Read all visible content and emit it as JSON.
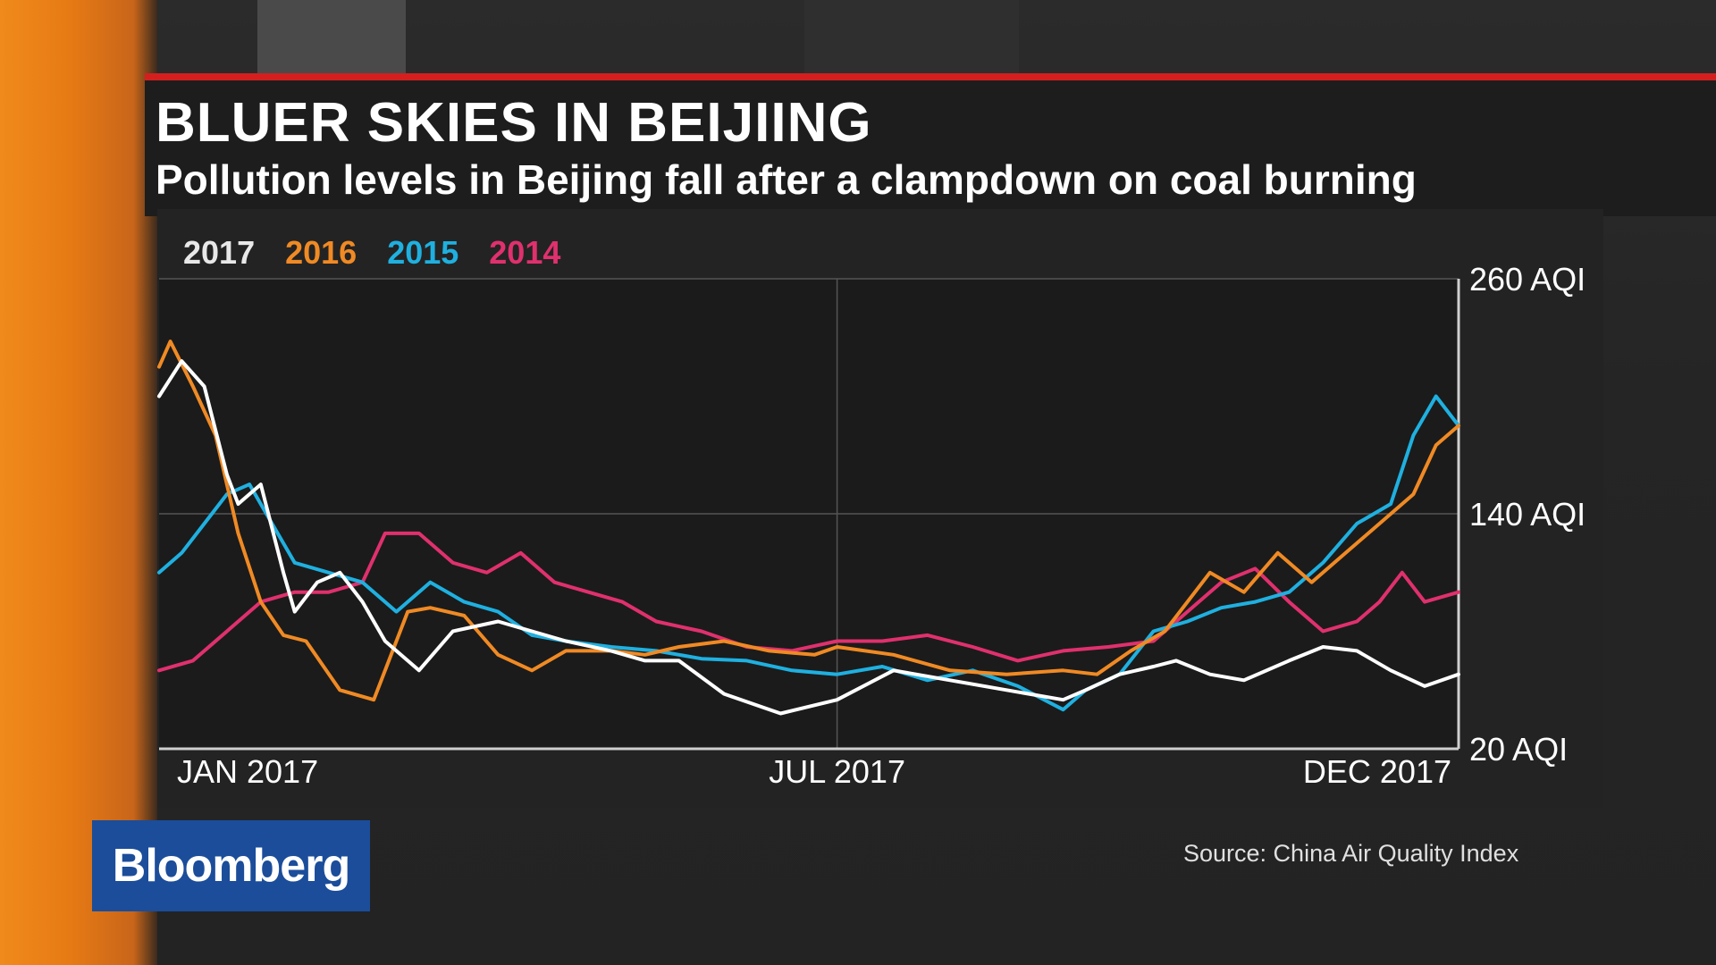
{
  "header": {
    "title": "BLUER SKIES IN BEIJIING",
    "subtitle": "Pollution levels in Beijing fall after a clampdown on coal burning"
  },
  "source": "Source: China Air Quality Index",
  "logo": "Bloomberg",
  "colors": {
    "accent_bar": "#d41f1f",
    "s2017": "#ffffff",
    "s2016": "#f08a24",
    "s2015": "#1fb0e0",
    "s2014": "#e0306e"
  },
  "chart_data": {
    "type": "line",
    "title": "BLUER SKIES IN BEIJIING",
    "subtitle": "Pollution levels in Beijing fall after a clampdown on coal burning",
    "xlabel": "",
    "ylabel": "",
    "xlim": [
      0,
      11.5
    ],
    "ylim": [
      20,
      260
    ],
    "x_ticks": [
      {
        "x": 0,
        "label": "JAN 2017"
      },
      {
        "x": 6,
        "label": "JUL 2017"
      },
      {
        "x": 11,
        "label": "DEC 2017"
      }
    ],
    "y_ticks": [
      {
        "y": 20,
        "label": "20 AQI"
      },
      {
        "y": 140,
        "label": "140 AQI"
      },
      {
        "y": 260,
        "label": "260 AQI"
      }
    ],
    "grid": true,
    "legend": "top-left",
    "series": [
      {
        "name": "2017",
        "color": "#ffffff",
        "x": [
          0,
          0.2,
          0.4,
          0.6,
          0.7,
          0.9,
          1.1,
          1.2,
          1.4,
          1.6,
          1.8,
          2.0,
          2.3,
          2.6,
          3.0,
          3.3,
          3.6,
          4.0,
          4.3,
          4.6,
          5.0,
          5.5,
          6.0,
          6.5,
          7.0,
          7.5,
          8.0,
          8.2,
          8.5,
          8.8,
          9.0,
          9.3,
          9.6,
          10.0,
          10.3,
          10.6,
          10.9,
          11.2,
          11.5
        ],
        "y": [
          200,
          218,
          205,
          160,
          145,
          155,
          110,
          90,
          105,
          110,
          95,
          75,
          60,
          80,
          85,
          80,
          75,
          70,
          65,
          65,
          48,
          38,
          45,
          60,
          55,
          50,
          45,
          50,
          58,
          62,
          65,
          58,
          55,
          65,
          72,
          70,
          60,
          52,
          58
        ]
      },
      {
        "name": "2016",
        "color": "#f08a24",
        "x": [
          0,
          0.1,
          0.3,
          0.5,
          0.7,
          0.9,
          1.1,
          1.3,
          1.6,
          1.9,
          2.2,
          2.4,
          2.7,
          3.0,
          3.3,
          3.6,
          4.0,
          4.3,
          4.6,
          5.0,
          5.4,
          5.8,
          6.0,
          6.5,
          7.0,
          7.5,
          8.0,
          8.3,
          8.6,
          8.9,
          9.3,
          9.6,
          9.9,
          10.2,
          10.5,
          10.8,
          11.1,
          11.3,
          11.5
        ],
        "y": [
          215,
          228,
          205,
          180,
          130,
          95,
          78,
          75,
          50,
          45,
          90,
          92,
          88,
          68,
          60,
          70,
          70,
          68,
          72,
          75,
          70,
          68,
          72,
          68,
          60,
          58,
          60,
          58,
          70,
          80,
          110,
          100,
          120,
          105,
          120,
          135,
          150,
          175,
          185
        ]
      },
      {
        "name": "2015",
        "color": "#1fb0e0",
        "x": [
          0,
          0.2,
          0.4,
          0.6,
          0.8,
          1.0,
          1.2,
          1.5,
          1.8,
          2.1,
          2.4,
          2.7,
          3.0,
          3.3,
          3.6,
          4.0,
          4.4,
          4.8,
          5.2,
          5.6,
          6.0,
          6.4,
          6.8,
          7.2,
          7.6,
          8.0,
          8.2,
          8.5,
          8.8,
          9.1,
          9.4,
          9.7,
          10.0,
          10.3,
          10.6,
          10.9,
          11.1,
          11.3,
          11.5
        ],
        "y": [
          110,
          120,
          135,
          150,
          155,
          135,
          115,
          110,
          105,
          90,
          105,
          95,
          90,
          78,
          75,
          72,
          70,
          66,
          65,
          60,
          58,
          62,
          55,
          60,
          52,
          40,
          50,
          58,
          80,
          85,
          92,
          95,
          100,
          115,
          135,
          145,
          180,
          200,
          185
        ]
      },
      {
        "name": "2014",
        "color": "#e0306e",
        "x": [
          0,
          0.3,
          0.6,
          0.9,
          1.2,
          1.5,
          1.8,
          2.0,
          2.3,
          2.6,
          2.9,
          3.2,
          3.5,
          3.8,
          4.1,
          4.4,
          4.8,
          5.2,
          5.6,
          6.0,
          6.4,
          6.8,
          7.2,
          7.6,
          8.0,
          8.4,
          8.8,
          9.1,
          9.4,
          9.7,
          10.0,
          10.3,
          10.6,
          10.8,
          11.0,
          11.2,
          11.5
        ],
        "y": [
          60,
          65,
          80,
          95,
          100,
          100,
          105,
          130,
          130,
          115,
          110,
          120,
          105,
          100,
          95,
          85,
          80,
          72,
          70,
          75,
          75,
          78,
          72,
          65,
          70,
          72,
          75,
          90,
          105,
          112,
          95,
          80,
          85,
          95,
          110,
          95,
          100
        ]
      }
    ]
  }
}
